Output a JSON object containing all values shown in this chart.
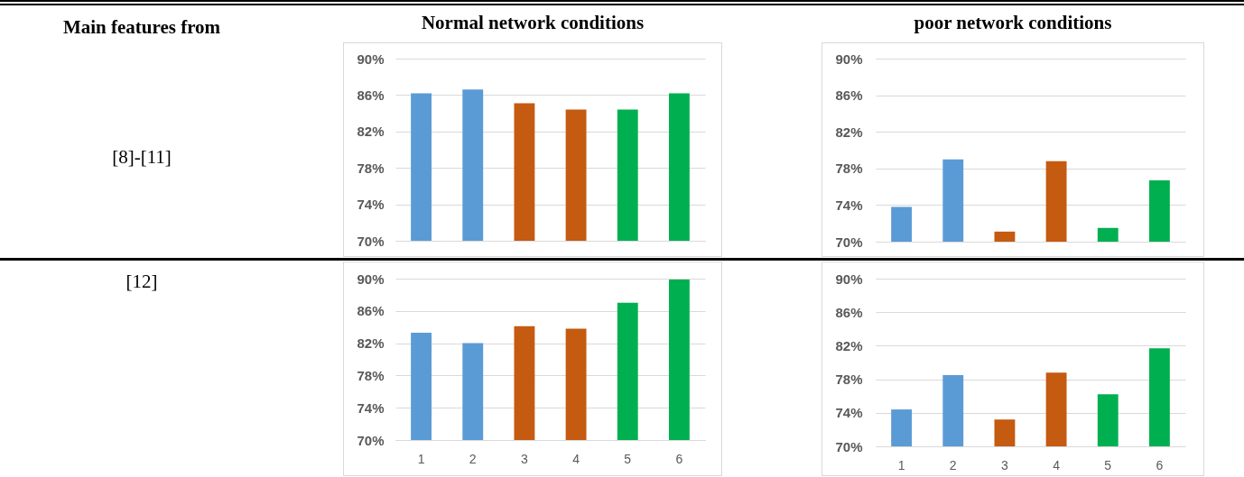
{
  "chart_data": [
    {
      "type": "other",
      "title": "Main features from",
      "annotations": [
        "[8]-[11]",
        "[12]"
      ]
    },
    {
      "type": "bar",
      "title": "Normal network conditions",
      "categories": [
        null,
        null,
        null,
        null,
        null,
        null
      ],
      "values": [
        86.2,
        86.6,
        85.1,
        84.4,
        84.4,
        86.2
      ],
      "colors": [
        "#5b9bd5",
        "#5b9bd5",
        "#c55a11",
        "#c55a11",
        "#00b050",
        "#00b050"
      ],
      "ylim": [
        70,
        90
      ],
      "yticks": [
        {
          "value": 70,
          "label": "70%"
        },
        {
          "value": 74,
          "label": "74%"
        },
        {
          "value": 78,
          "label": "78%"
        },
        {
          "value": 82,
          "label": "82%"
        },
        {
          "value": 86,
          "label": "86%"
        },
        {
          "value": 90,
          "label": "90%"
        }
      ],
      "grid": "y",
      "tick_labels": "y"
    },
    {
      "type": "bar",
      "title": "poor network conditions",
      "categories": [
        null,
        null,
        null,
        null,
        null,
        null
      ],
      "values": [
        73.8,
        79.0,
        71.1,
        78.8,
        71.5,
        76.7
      ],
      "colors": [
        "#5b9bd5",
        "#5b9bd5",
        "#c55a11",
        "#c55a11",
        "#00b050",
        "#00b050"
      ],
      "ylim": [
        70,
        90
      ],
      "yticks": [
        {
          "value": 70,
          "label": "70%"
        },
        {
          "value": 74,
          "label": "74%"
        },
        {
          "value": 78,
          "label": "78%"
        },
        {
          "value": 82,
          "label": "82%"
        },
        {
          "value": 86,
          "label": "86%"
        },
        {
          "value": 90,
          "label": "90%"
        }
      ],
      "grid": "y",
      "tick_labels": "y"
    },
    {
      "type": "bar",
      "categories": [
        "1",
        "2",
        "3",
        "4",
        "5",
        "6"
      ],
      "values": [
        83.3,
        82.0,
        84.1,
        83.8,
        87.0,
        89.9
      ],
      "colors": [
        "#5b9bd5",
        "#5b9bd5",
        "#c55a11",
        "#c55a11",
        "#00b050",
        "#00b050"
      ],
      "ylim": [
        70,
        90
      ],
      "yticks": [
        {
          "value": 70,
          "label": "70%"
        },
        {
          "value": 74,
          "label": "74%"
        },
        {
          "value": 78,
          "label": "78%"
        },
        {
          "value": 82,
          "label": "82%"
        },
        {
          "value": 86,
          "label": "86%"
        },
        {
          "value": 90,
          "label": "90%"
        }
      ],
      "grid": "y"
    },
    {
      "type": "bar",
      "categories": [
        "1",
        "2",
        "3",
        "4",
        "5",
        "6"
      ],
      "values": [
        74.4,
        78.5,
        73.2,
        78.8,
        76.2,
        81.7
      ],
      "colors": [
        "#5b9bd5",
        "#5b9bd5",
        "#c55a11",
        "#c55a11",
        "#00b050",
        "#00b050"
      ],
      "ylim": [
        70,
        90
      ],
      "yticks": [
        {
          "value": 70,
          "label": "70%"
        },
        {
          "value": 74,
          "label": "74%"
        },
        {
          "value": 78,
          "label": "78%"
        },
        {
          "value": 82,
          "label": "82%"
        },
        {
          "value": 86,
          "label": "86%"
        },
        {
          "value": 90,
          "label": "90%"
        }
      ],
      "grid": "y"
    }
  ]
}
